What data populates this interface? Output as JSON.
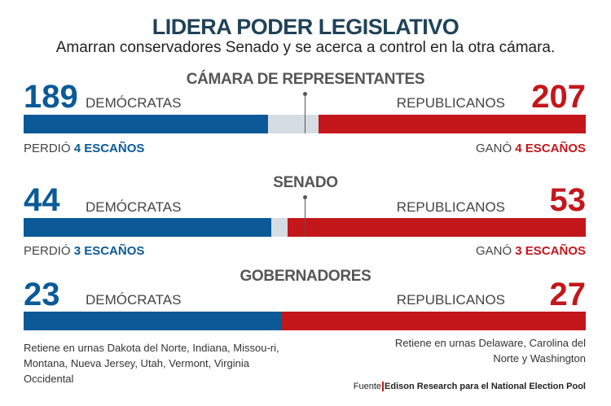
{
  "title": "LIDERA PODER LEGISLATIVO",
  "subtitle": "Amarran conservadores Senado y se acerca a control en la otra cámara.",
  "colors": {
    "dem": "#0b5a97",
    "rep": "#c3171c",
    "pending": "#d6dde2"
  },
  "chart_data": [
    {
      "type": "bar",
      "title": "CÁMARA DE REPRESENTANTES",
      "total": 435,
      "majority_marker": true,
      "series": [
        {
          "name": "DEMÓCRATAS",
          "value": 189
        },
        {
          "name": "REPUBLICANOS",
          "value": 207
        }
      ],
      "dem_change": {
        "prefix": "PERDIÓ",
        "value": "4 ESCAÑOS"
      },
      "rep_change": {
        "prefix": "GANÓ",
        "value": "4 ESCAÑOS"
      }
    },
    {
      "type": "bar",
      "title": "SENADO",
      "total": 100,
      "majority_marker": true,
      "series": [
        {
          "name": "DEMÓCRATAS",
          "value": 44
        },
        {
          "name": "REPUBLICANOS",
          "value": 53
        }
      ],
      "dem_change": {
        "prefix": "PERDIÓ",
        "value": "3 ESCAÑOS"
      },
      "rep_change": {
        "prefix": "GANÓ",
        "value": "3 ESCAÑOS"
      }
    },
    {
      "type": "bar",
      "title": "GOBERNADORES",
      "total": 50,
      "majority_marker": false,
      "series": [
        {
          "name": "DEMÓCRATAS",
          "value": 23
        },
        {
          "name": "REPUBLICANOS",
          "value": 27
        }
      ],
      "dem_note": "Retiene en urnas Dakota del Norte, Indiana, Missou-ri, Montana, Nueva Jersey, Utah, Vermont, Virginia Occidental",
      "rep_note": "Retiene en urnas Delaware, Carolina del Norte y Washington"
    }
  ],
  "source": {
    "label": "Fuente",
    "text": "Edison Research para el National Election Pool"
  }
}
